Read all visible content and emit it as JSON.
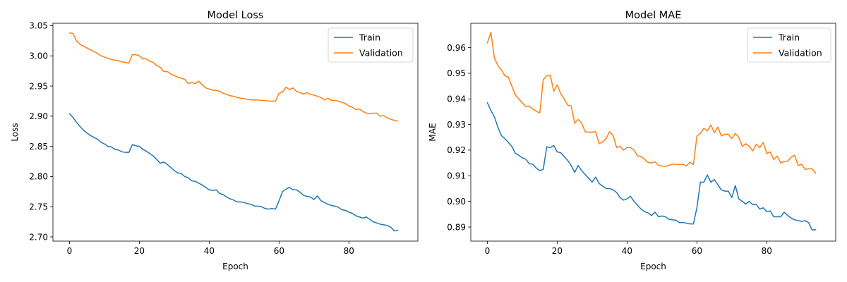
{
  "chart_data": [
    {
      "type": "line",
      "title": "Model Loss",
      "xlabel": "Epoch",
      "ylabel": "Loss",
      "xlim": [
        -4.75,
        99.75
      ],
      "ylim": [
        2.693,
        3.054
      ],
      "xticks": [
        0,
        20,
        40,
        60,
        80
      ],
      "yticks": [
        2.7,
        2.75,
        2.8,
        2.85,
        2.9,
        2.95,
        3.0,
        3.05
      ],
      "ytick_decimals": 2,
      "legend": "top-right",
      "series": [
        {
          "name": "Train",
          "color": "#1f77b4",
          "values": [
            2.904,
            2.898,
            2.89,
            2.883,
            2.877,
            2.872,
            2.868,
            2.865,
            2.862,
            2.857,
            2.854,
            2.85,
            2.849,
            2.845,
            2.844,
            2.841,
            2.84,
            2.84,
            2.853,
            2.851,
            2.85,
            2.845,
            2.842,
            2.838,
            2.834,
            2.828,
            2.822,
            2.824,
            2.82,
            2.815,
            2.81,
            2.806,
            2.805,
            2.8,
            2.798,
            2.793,
            2.792,
            2.789,
            2.786,
            2.782,
            2.778,
            2.777,
            2.778,
            2.772,
            2.77,
            2.766,
            2.763,
            2.761,
            2.758,
            2.758,
            2.757,
            2.755,
            2.754,
            2.751,
            2.751,
            2.75,
            2.747,
            2.746,
            2.747,
            2.746,
            2.76,
            2.775,
            2.779,
            2.782,
            2.778,
            2.778,
            2.774,
            2.769,
            2.767,
            2.766,
            2.762,
            2.768,
            2.76,
            2.757,
            2.754,
            2.752,
            2.751,
            2.749,
            2.745,
            2.744,
            2.741,
            2.739,
            2.735,
            2.733,
            2.731,
            2.733,
            2.729,
            2.725,
            2.723,
            2.721,
            2.72,
            2.719,
            2.716,
            2.71,
            2.711
          ]
        },
        {
          "name": "Validation",
          "color": "#ff7f0e",
          "values": [
            3.038,
            3.037,
            3.025,
            3.019,
            3.016,
            3.013,
            3.01,
            3.007,
            3.004,
            3.0,
            2.998,
            2.996,
            2.994,
            2.993,
            2.992,
            2.99,
            2.989,
            2.988,
            3.002,
            3.002,
            3.0,
            2.995,
            2.995,
            2.991,
            2.989,
            2.984,
            2.981,
            2.974,
            2.974,
            2.97,
            2.967,
            2.965,
            2.963,
            2.961,
            2.954,
            2.956,
            2.954,
            2.958,
            2.952,
            2.947,
            2.945,
            2.943,
            2.943,
            2.941,
            2.938,
            2.936,
            2.934,
            2.933,
            2.931,
            2.93,
            2.929,
            2.928,
            2.927,
            2.927,
            2.927,
            2.926,
            2.926,
            2.925,
            2.925,
            2.925,
            2.938,
            2.94,
            2.948,
            2.944,
            2.947,
            2.941,
            2.939,
            2.937,
            2.939,
            2.936,
            2.935,
            2.933,
            2.931,
            2.927,
            2.93,
            2.926,
            2.926,
            2.925,
            2.923,
            2.921,
            2.917,
            2.915,
            2.911,
            2.912,
            2.908,
            2.905,
            2.904,
            2.905,
            2.905,
            2.9,
            2.901,
            2.897,
            2.895,
            2.893,
            2.892
          ]
        }
      ]
    },
    {
      "type": "line",
      "title": "Model MAE",
      "xlabel": "Epoch",
      "ylabel": "MAE",
      "xlim": [
        -4.75,
        99.75
      ],
      "ylim": [
        0.8845,
        0.9695
      ],
      "xticks": [
        0,
        20,
        40,
        60,
        80
      ],
      "yticks": [
        0.89,
        0.9,
        0.91,
        0.92,
        0.93,
        0.94,
        0.95,
        0.96
      ],
      "ytick_decimals": 2,
      "legend": "top-right",
      "series": [
        {
          "name": "Train",
          "color": "#1f77b4",
          "values": [
            0.9385,
            0.9355,
            0.933,
            0.929,
            0.9257,
            0.9245,
            0.923,
            0.9215,
            0.9188,
            0.918,
            0.917,
            0.9165,
            0.9147,
            0.9145,
            0.913,
            0.912,
            0.9125,
            0.9213,
            0.921,
            0.9218,
            0.9193,
            0.919,
            0.9175,
            0.916,
            0.914,
            0.9113,
            0.914,
            0.912,
            0.9105,
            0.909,
            0.9075,
            0.9095,
            0.907,
            0.906,
            0.905,
            0.905,
            0.9045,
            0.9035,
            0.9015,
            0.9005,
            0.901,
            0.902,
            0.9,
            0.8985,
            0.897,
            0.896,
            0.8955,
            0.8945,
            0.8958,
            0.894,
            0.8943,
            0.894,
            0.893,
            0.8928,
            0.8927,
            0.8917,
            0.8918,
            0.8915,
            0.8912,
            0.8912,
            0.8975,
            0.9075,
            0.9075,
            0.9103,
            0.9075,
            0.9085,
            0.9065,
            0.9045,
            0.904,
            0.904,
            0.9015,
            0.9062,
            0.901,
            0.9,
            0.899,
            0.9,
            0.8987,
            0.8988,
            0.897,
            0.8975,
            0.896,
            0.8963,
            0.894,
            0.894,
            0.894,
            0.8958,
            0.8945,
            0.8935,
            0.8928,
            0.8925,
            0.8922,
            0.8925,
            0.8917,
            0.8888,
            0.889
          ]
        },
        {
          "name": "Validation",
          "color": "#ff7f0e",
          "values": [
            0.9618,
            0.966,
            0.956,
            0.953,
            0.9513,
            0.949,
            0.9485,
            0.945,
            0.9415,
            0.94,
            0.9385,
            0.937,
            0.9372,
            0.936,
            0.9352,
            0.9345,
            0.9475,
            0.949,
            0.9493,
            0.943,
            0.9455,
            0.942,
            0.94,
            0.9375,
            0.9373,
            0.9305,
            0.932,
            0.9305,
            0.9272,
            0.927,
            0.927,
            0.9272,
            0.9225,
            0.9232,
            0.9245,
            0.9272,
            0.9257,
            0.921,
            0.9215,
            0.92,
            0.921,
            0.921,
            0.92,
            0.9178,
            0.9175,
            0.9165,
            0.9152,
            0.915,
            0.9155,
            0.914,
            0.9138,
            0.9137,
            0.914,
            0.9145,
            0.9145,
            0.9143,
            0.9145,
            0.9138,
            0.9153,
            0.9143,
            0.9255,
            0.9265,
            0.9285,
            0.9275,
            0.9298,
            0.9268,
            0.929,
            0.9255,
            0.9262,
            0.9262,
            0.9245,
            0.9265,
            0.925,
            0.9215,
            0.9225,
            0.9215,
            0.9197,
            0.9223,
            0.921,
            0.923,
            0.9187,
            0.9193,
            0.9163,
            0.9177,
            0.915,
            0.9155,
            0.9157,
            0.9173,
            0.918,
            0.914,
            0.9145,
            0.9125,
            0.9127,
            0.9127,
            0.911
          ]
        }
      ]
    }
  ]
}
